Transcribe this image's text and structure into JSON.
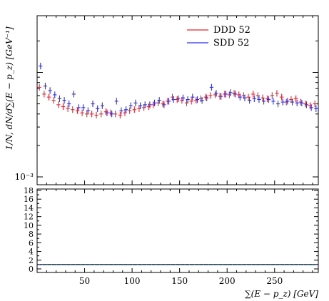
{
  "chart_data": {
    "type": "scatter",
    "xlabel": "∑(E − p_z) [GeV]",
    "ylabel": "1/N, dN/d∑(E − p_z) [GeV⁻¹]",
    "xlim": [
      0,
      296
    ],
    "y_scale": "log",
    "y_visible_tick_label": "10⁻³",
    "legend_position": "top-right",
    "x_ticks": [
      50,
      100,
      150,
      200,
      250
    ],
    "series": [
      {
        "name": "DDD 52",
        "color": "#e8262e",
        "x": [
          3,
          8,
          13,
          18,
          23,
          28,
          33,
          38,
          43,
          48,
          53,
          58,
          63,
          68,
          73,
          78,
          83,
          88,
          93,
          98,
          103,
          108,
          113,
          118,
          123,
          128,
          133,
          138,
          143,
          148,
          153,
          158,
          163,
          168,
          173,
          178,
          183,
          188,
          193,
          198,
          203,
          208,
          213,
          218,
          223,
          228,
          233,
          238,
          243,
          248,
          253,
          258,
          263,
          268,
          273,
          278,
          283,
          288,
          293
        ],
        "y": [
          0.0072,
          0.0062,
          0.0058,
          0.0054,
          0.0049,
          0.0047,
          0.0045,
          0.0044,
          0.0043,
          0.0041,
          0.004,
          0.004,
          0.0039,
          0.004,
          0.0042,
          0.0041,
          0.004,
          0.0039,
          0.0041,
          0.0043,
          0.0044,
          0.0045,
          0.0046,
          0.0047,
          0.0049,
          0.0051,
          0.005,
          0.0053,
          0.0058,
          0.0055,
          0.0054,
          0.0051,
          0.0053,
          0.0054,
          0.0056,
          0.0058,
          0.006,
          0.0061,
          0.0059,
          0.0062,
          0.0061,
          0.0063,
          0.0061,
          0.006,
          0.0058,
          0.0062,
          0.006,
          0.0057,
          0.0056,
          0.006,
          0.0063,
          0.0058,
          0.0052,
          0.0055,
          0.0056,
          0.0052,
          0.005,
          0.0048,
          0.005
        ]
      },
      {
        "name": "SDD 52",
        "color": "#2b2ef0",
        "x": [
          3,
          8,
          13,
          18,
          23,
          28,
          33,
          38,
          43,
          48,
          53,
          58,
          63,
          68,
          73,
          78,
          83,
          88,
          93,
          98,
          103,
          108,
          113,
          118,
          123,
          128,
          133,
          138,
          143,
          148,
          153,
          158,
          163,
          168,
          173,
          178,
          183,
          188,
          193,
          198,
          203,
          208,
          213,
          218,
          223,
          228,
          233,
          238,
          243,
          248,
          253,
          258,
          263,
          268,
          273,
          278,
          283,
          288,
          293
        ],
        "y": [
          0.0115,
          0.0074,
          0.0067,
          0.0061,
          0.0056,
          0.0054,
          0.005,
          0.0062,
          0.0046,
          0.0046,
          0.0043,
          0.005,
          0.0045,
          0.0048,
          0.0041,
          0.004,
          0.0053,
          0.0043,
          0.0044,
          0.0048,
          0.0051,
          0.0048,
          0.0049,
          0.0049,
          0.0051,
          0.0054,
          0.0049,
          0.0053,
          0.0055,
          0.0056,
          0.0057,
          0.0055,
          0.0058,
          0.0055,
          0.0054,
          0.0057,
          0.0072,
          0.0063,
          0.0059,
          0.0062,
          0.0064,
          0.0062,
          0.0058,
          0.0057,
          0.0054,
          0.0056,
          0.0055,
          0.0053,
          0.0055,
          0.0053,
          0.005,
          0.0052,
          0.0053,
          0.0052,
          0.0051,
          0.0051,
          0.0049,
          0.0046,
          0.0045
        ]
      }
    ],
    "ratio_panel": {
      "ylim": [
        0,
        18
      ],
      "y_ticks": [
        0,
        2,
        4,
        6,
        8,
        10,
        12,
        14,
        16,
        18
      ],
      "band_color": "#2ca02c",
      "ratio": [
        1,
        1,
        1,
        1,
        1,
        1,
        1,
        1,
        1,
        1,
        1,
        1,
        1,
        1,
        1,
        1,
        1,
        1,
        1,
        1,
        1,
        1,
        1,
        1,
        1,
        1,
        1,
        1,
        1,
        1,
        1,
        1,
        1,
        1,
        1,
        1,
        1,
        1,
        1,
        1,
        1,
        1,
        1,
        1,
        1,
        1,
        1,
        1,
        1,
        1,
        1,
        1,
        1,
        1,
        1,
        1,
        1,
        1,
        1
      ]
    }
  }
}
